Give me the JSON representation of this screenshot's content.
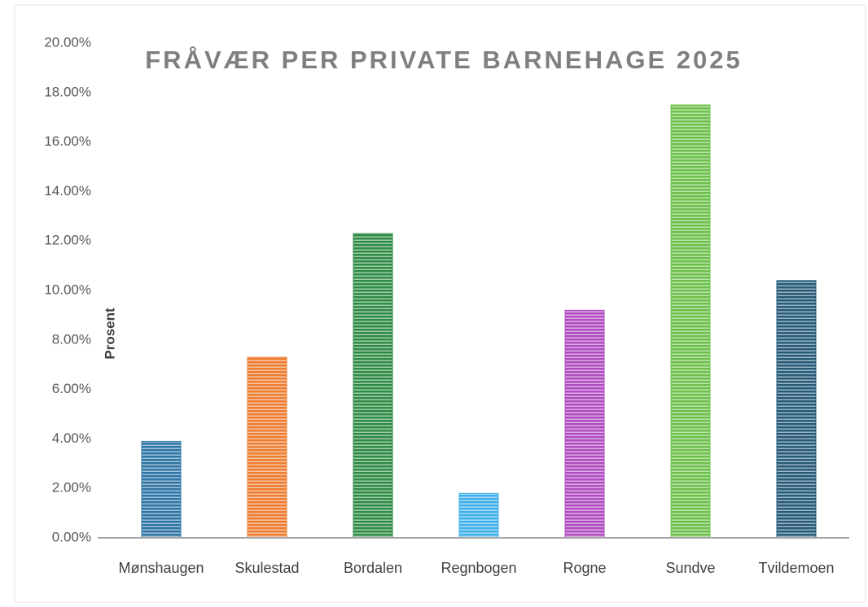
{
  "chart_data": {
    "type": "bar",
    "title": "FRÅVÆR PER PRIVATE BARNEHAGE 2025",
    "y_label": "Prosent",
    "categories": [
      "Mønshaugen",
      "Skulestad",
      "Bordalen",
      "Regnbogen",
      "Rogne",
      "Sundve",
      "Tvildemoen"
    ],
    "values": [
      3.9,
      7.3,
      12.3,
      1.8,
      9.2,
      17.5,
      10.4
    ],
    "colors": [
      "#2e75a6",
      "#ed7d31",
      "#2e8b45",
      "#3fb0e8",
      "#b04cc0",
      "#6cc04a",
      "#255a78"
    ],
    "ylim": [
      0,
      20
    ],
    "yticks": [
      {
        "value": 0,
        "label": "0.00%"
      },
      {
        "value": 2,
        "label": "2.00%"
      },
      {
        "value": 4,
        "label": "4.00%"
      },
      {
        "value": 6,
        "label": "6.00%"
      },
      {
        "value": 8,
        "label": "8.00%"
      },
      {
        "value": 10,
        "label": "10.00%"
      },
      {
        "value": 12,
        "label": "12.00%"
      },
      {
        "value": 14,
        "label": "14.00%"
      },
      {
        "value": 16,
        "label": "16.00%"
      },
      {
        "value": 18,
        "label": "18.00%"
      },
      {
        "value": 20,
        "label": "20.00%"
      }
    ],
    "grid": false
  }
}
